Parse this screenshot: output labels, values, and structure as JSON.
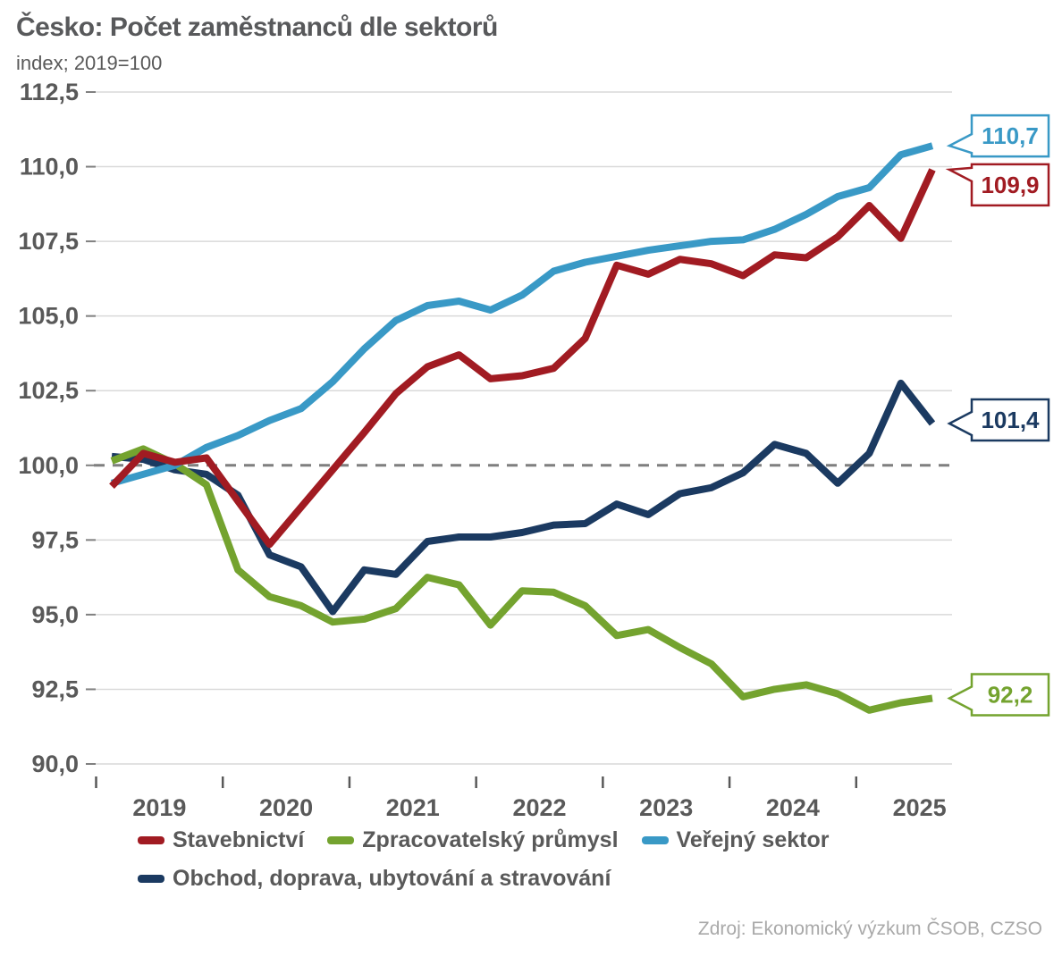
{
  "header": {
    "title": "Česko: Počet zaměstnanců dle sektorů",
    "subtitle": "index; 2019=100"
  },
  "source": "Zdroj: Ekonomický výzkum ČSOB, CZSO",
  "colors": {
    "grid": "#d9d9d9",
    "baseline_dash": "#7f7f7f",
    "axis_text": "#595959",
    "tick": "#808080",
    "title_text": "#58595b",
    "source_text": "#a9a9a9"
  },
  "chart_data": {
    "type": "line",
    "title": "Česko: Počet zaměstnanců dle sektorů",
    "subtitle": "index; 2019=100",
    "grid": true,
    "legend_position": "bottom",
    "xlabel": "",
    "ylabel": "index; 2019=100",
    "ylim": [
      90.0,
      112.5
    ],
    "ytick_step": 2.5,
    "ytick_labels": [
      "90,0",
      "92,5",
      "95,0",
      "97,5",
      "100,0",
      "102,5",
      "105,0",
      "107,5",
      "110,0",
      "112,5"
    ],
    "baseline": {
      "value": 100,
      "style": "dashed"
    },
    "year_labels": [
      "2019",
      "2020",
      "2021",
      "2022",
      "2023",
      "2024",
      "2025"
    ],
    "x": [
      "2019 Q1",
      "2019 Q2",
      "2019 Q3",
      "2019 Q4",
      "2020 Q1",
      "2020 Q2",
      "2020 Q3",
      "2020 Q4",
      "2021 Q1",
      "2021 Q2",
      "2021 Q3",
      "2021 Q4",
      "2022 Q1",
      "2022 Q2",
      "2022 Q3",
      "2022 Q4",
      "2023 Q1",
      "2023 Q2",
      "2023 Q3",
      "2023 Q4",
      "2024 Q1",
      "2024 Q2",
      "2024 Q3",
      "2024 Q4",
      "2025 Q1",
      "2025 Q2",
      "2025 Q3"
    ],
    "series": [
      {
        "id": "stavebnictvi",
        "name": "Stavebnictví",
        "color": "#a11b22",
        "end_label": "109,9",
        "values": [
          99.3,
          100.4,
          100.1,
          100.25,
          98.8,
          97.35,
          98.6,
          99.85,
          101.1,
          102.4,
          103.3,
          103.7,
          102.9,
          103.0,
          103.25,
          104.25,
          106.7,
          106.4,
          106.9,
          106.75,
          106.35,
          107.05,
          106.95,
          107.65,
          108.7,
          107.6,
          109.9
        ]
      },
      {
        "id": "zpracovatelsky-prumysl",
        "name": "Zpracovatelský průmysl",
        "color": "#74a32f",
        "end_label": "92,2",
        "values": [
          100.15,
          100.55,
          100.05,
          99.35,
          96.5,
          95.6,
          95.3,
          94.75,
          94.85,
          95.2,
          96.25,
          96.0,
          94.65,
          95.8,
          95.75,
          95.3,
          94.3,
          94.5,
          93.9,
          93.35,
          92.25,
          92.5,
          92.65,
          92.35,
          91.8,
          92.05,
          92.2
        ]
      },
      {
        "id": "verejny-sektor",
        "name": "Veřejný sektor",
        "color": "#3999c6",
        "end_label": "110,7",
        "values": [
          99.4,
          99.7,
          100.0,
          100.6,
          101.0,
          101.5,
          101.9,
          102.8,
          103.9,
          104.85,
          105.35,
          105.5,
          105.2,
          105.7,
          106.5,
          106.8,
          107.0,
          107.2,
          107.35,
          107.5,
          107.55,
          107.9,
          108.4,
          109.0,
          109.3,
          110.4,
          110.7
        ]
      },
      {
        "id": "obchod-doprava-ubytovani-a-stravovani",
        "name": "Obchod, doprava, ubytování a stravování",
        "color": "#1b3a61",
        "end_label": "101,4",
        "values": [
          100.3,
          100.2,
          99.85,
          99.7,
          99.0,
          97.0,
          96.6,
          95.1,
          96.5,
          96.35,
          97.45,
          97.6,
          97.6,
          97.75,
          98.0,
          98.05,
          98.7,
          98.35,
          99.05,
          99.25,
          99.75,
          100.7,
          100.4,
          99.4,
          100.4,
          102.75,
          101.4
        ]
      }
    ]
  }
}
